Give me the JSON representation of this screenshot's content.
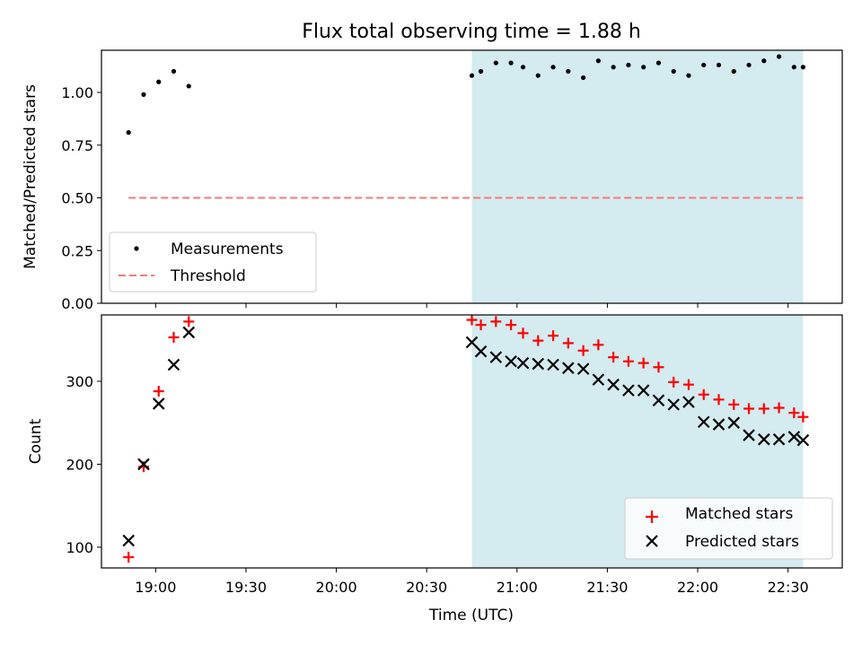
{
  "title": "Flux total observing time = 1.88 h",
  "colors": {
    "shade": "#d4ebf0",
    "threshold": "#f57a7a",
    "matched": "#ff0000",
    "predicted": "#000000",
    "measurement": "#000000"
  },
  "chart_data": [
    {
      "type": "scatter",
      "panel": "top",
      "ylabel": "Matched/Predicted stars",
      "xlim": [
        "18:42",
        "22:48"
      ],
      "ylim": [
        0,
        1.2
      ],
      "yticks": [
        0.0,
        0.25,
        0.5,
        0.75,
        1.0
      ],
      "ytick_labels": [
        "0.00",
        "0.25",
        "0.50",
        "0.75",
        "1.00"
      ],
      "shaded_region": [
        "20:45",
        "22:35"
      ],
      "legend_position": "lower-left",
      "series": [
        {
          "name": "Measurements",
          "kind": "points",
          "x": [
            "18:51",
            "18:56",
            "19:01",
            "19:06",
            "19:11",
            "20:45",
            "20:48",
            "20:53",
            "20:58",
            "21:02",
            "21:07",
            "21:12",
            "21:17",
            "21:22",
            "21:27",
            "21:32",
            "21:37",
            "21:42",
            "21:47",
            "21:52",
            "21:57",
            "22:02",
            "22:07",
            "22:12",
            "22:17",
            "22:22",
            "22:27",
            "22:32",
            "22:35"
          ],
          "y": [
            0.81,
            0.99,
            1.05,
            1.1,
            1.03,
            1.08,
            1.1,
            1.14,
            1.14,
            1.12,
            1.08,
            1.12,
            1.1,
            1.07,
            1.15,
            1.12,
            1.13,
            1.12,
            1.14,
            1.1,
            1.08,
            1.13,
            1.13,
            1.1,
            1.13,
            1.15,
            1.17,
            1.12,
            1.12
          ]
        },
        {
          "name": "Threshold",
          "kind": "dashed-line",
          "x": [
            "18:51",
            "22:35"
          ],
          "y": [
            0.5,
            0.5
          ]
        }
      ]
    },
    {
      "type": "scatter",
      "panel": "bottom",
      "xlabel": "Time (UTC)",
      "ylabel": "Count",
      "xlim": [
        "18:42",
        "22:48"
      ],
      "ylim": [
        75,
        380
      ],
      "yticks": [
        100,
        200,
        300
      ],
      "xticks": [
        "19:00",
        "19:30",
        "20:00",
        "20:30",
        "21:00",
        "21:30",
        "22:00",
        "22:30"
      ],
      "shaded_region": [
        "20:45",
        "22:35"
      ],
      "legend_position": "lower-right",
      "series": [
        {
          "name": "Matched stars",
          "marker": "plus",
          "x": [
            "18:51",
            "18:56",
            "19:01",
            "19:06",
            "19:11",
            "20:45",
            "20:48",
            "20:53",
            "20:58",
            "21:02",
            "21:07",
            "21:12",
            "21:17",
            "21:22",
            "21:27",
            "21:32",
            "21:37",
            "21:42",
            "21:47",
            "21:52",
            "21:57",
            "22:02",
            "22:07",
            "22:12",
            "22:17",
            "22:22",
            "22:27",
            "22:32",
            "22:35"
          ],
          "y": [
            88,
            197,
            288,
            353,
            372,
            374,
            368,
            372,
            368,
            358,
            349,
            355,
            346,
            337,
            344,
            329,
            324,
            322,
            317,
            299,
            296,
            284,
            278,
            272,
            267,
            267,
            268,
            262,
            257
          ]
        },
        {
          "name": "Predicted stars",
          "marker": "x",
          "x": [
            "18:51",
            "18:56",
            "19:01",
            "19:06",
            "19:11",
            "20:45",
            "20:48",
            "20:53",
            "20:58",
            "21:02",
            "21:07",
            "21:12",
            "21:17",
            "21:22",
            "21:27",
            "21:32",
            "21:37",
            "21:42",
            "21:47",
            "21:52",
            "21:57",
            "22:02",
            "22:07",
            "22:12",
            "22:17",
            "22:22",
            "22:27",
            "22:32",
            "22:35"
          ],
          "y": [
            108,
            200,
            273,
            320,
            359,
            347,
            336,
            329,
            324,
            322,
            321,
            320,
            316,
            315,
            302,
            296,
            289,
            289,
            277,
            272,
            275,
            251,
            248,
            250,
            235,
            230,
            230,
            233,
            229
          ]
        }
      ]
    }
  ]
}
